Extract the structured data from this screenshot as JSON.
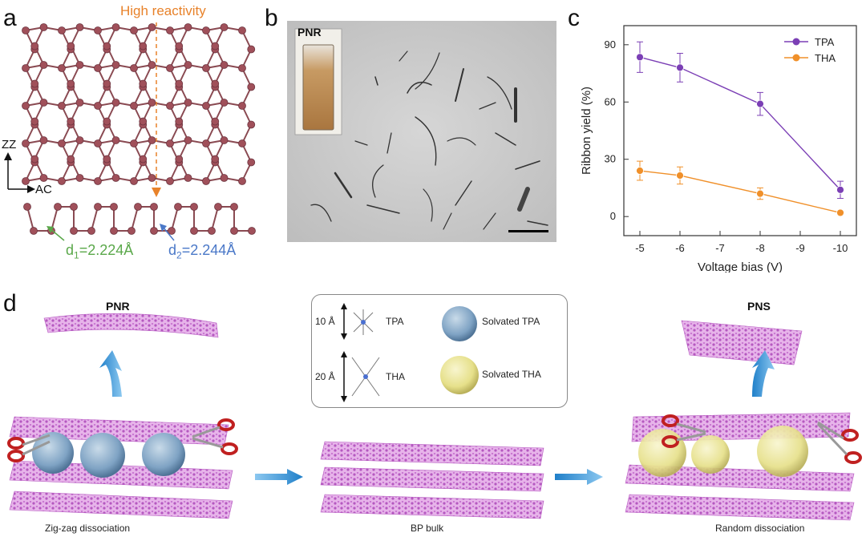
{
  "panel_letters": {
    "a": "a",
    "b": "b",
    "c": "c",
    "d": "d"
  },
  "panel_a": {
    "high_reactivity": "High reactivity",
    "axis_zz": "ZZ",
    "axis_ac": "AC",
    "d1_label": "d",
    "d1_sub": "1",
    "d1_value": "=2.224Å",
    "d2_label": "d",
    "d2_sub": "2",
    "d2_value": "=2.244Å",
    "colors": {
      "atom": "#a0505a",
      "bond": "#8a4a52",
      "orange": "#e8822a",
      "green": "#5aa84a",
      "blue": "#4a78c8"
    }
  },
  "panel_b": {
    "inset_label": "PNR"
  },
  "chart_data": {
    "type": "line",
    "xlabel": "Voltage bias (V)",
    "ylabel": "Ribbon yield (%)",
    "x_ticks": [
      "-5",
      "-6",
      "-7",
      "-8",
      "-9",
      "-10"
    ],
    "y_ticks": [
      "0",
      "30",
      "60",
      "90"
    ],
    "ylim": [
      -10,
      100
    ],
    "xlim": [
      -4.6,
      -10.4
    ],
    "legend_position": "top-right",
    "series": [
      {
        "name": "TPA",
        "color": "#7b3fb5",
        "x": [
          -5,
          -6,
          -8,
          -10
        ],
        "y": [
          83.5,
          78,
          59,
          14
        ],
        "err": [
          8,
          7.5,
          6,
          4.5
        ]
      },
      {
        "name": "THA",
        "color": "#f0902a",
        "x": [
          -5,
          -6,
          -8,
          -10
        ],
        "y": [
          24,
          21.5,
          12,
          2
        ],
        "err": [
          5,
          4.5,
          3,
          1
        ]
      }
    ]
  },
  "panel_d": {
    "left_title": "PNR",
    "right_title": "PNS",
    "left_caption": "Zig-zag dissociation",
    "center_caption": "BP bulk",
    "right_caption": "Random dissociation",
    "legend": {
      "tpa_size": "10 Å",
      "tpa_label": "TPA",
      "tha_size": "20 Å",
      "tha_label": "THA",
      "solvated_tpa": "Solvated TPA",
      "solvated_tha": "Solvated THA"
    },
    "colors": {
      "sheet": "#c86fd0",
      "tpa_sphere": "#7fa3c4",
      "tha_sphere": "#e6e08a",
      "arrow": "#3a9ad8",
      "scissors": "#c02020"
    }
  }
}
